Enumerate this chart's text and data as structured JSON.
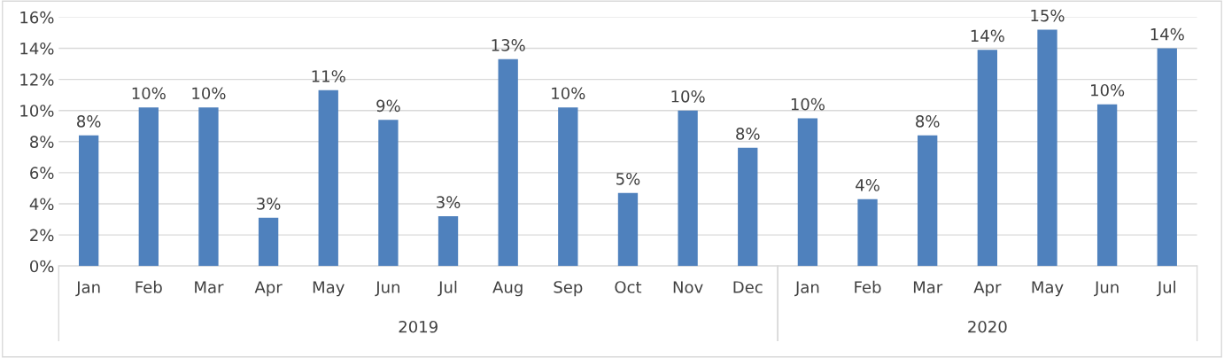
{
  "chart_data": {
    "type": "bar",
    "categories": [
      "Jan",
      "Feb",
      "Mar",
      "Apr",
      "May",
      "Jun",
      "Jul",
      "Aug",
      "Sep",
      "Oct",
      "Nov",
      "Dec",
      "Jan",
      "Feb",
      "Mar",
      "Apr",
      "May",
      "Jun",
      "Jul"
    ],
    "values": [
      8.4,
      10.2,
      10.2,
      3.1,
      11.3,
      9.4,
      3.2,
      13.3,
      10.2,
      4.7,
      10.0,
      7.6,
      9.5,
      4.3,
      8.4,
      13.9,
      15.2,
      10.4,
      14.0
    ],
    "value_labels": [
      "8%",
      "10%",
      "10%",
      "3%",
      "11%",
      "9%",
      "3%",
      "13%",
      "10%",
      "5%",
      "10%",
      "8%",
      "10%",
      "4%",
      "8%",
      "14%",
      "15%",
      "10%",
      "14%"
    ],
    "color": "#4f81bd",
    "ylim": [
      0,
      16
    ],
    "yticks": [
      {
        "value": 0,
        "label": "0%"
      },
      {
        "value": 2,
        "label": "2%"
      },
      {
        "value": 4,
        "label": "4%"
      },
      {
        "value": 6,
        "label": "6%"
      },
      {
        "value": 8,
        "label": "8%"
      },
      {
        "value": 10,
        "label": "10%"
      },
      {
        "value": 12,
        "label": "12%"
      },
      {
        "value": 14,
        "label": "14%"
      },
      {
        "value": 16,
        "label": "16%"
      }
    ],
    "grid": "y",
    "annotations": [
      "2019",
      "2020"
    ]
  }
}
